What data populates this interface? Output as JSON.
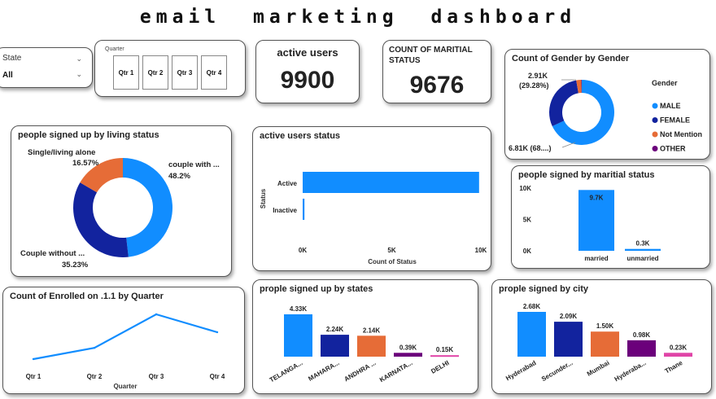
{
  "dashboard_title": "email marketing dashboard",
  "state_slicer": {
    "label": "State",
    "value": "All"
  },
  "quarter_slicer": {
    "label": "Quarter",
    "options": [
      "Qtr 1",
      "Qtr 2",
      "Qtr 3",
      "Qtr 4"
    ]
  },
  "kpi_active": {
    "label": "active users",
    "value": "9900"
  },
  "kpi_marital": {
    "label": "COUNT OF MARITIAL STATUS",
    "value": "9676"
  },
  "colors": {
    "blue": "#118DFF",
    "navy": "#12239E",
    "orange": "#E66C37",
    "purple": "#6B007B",
    "pink": "#E044A7"
  },
  "chart_data": [
    {
      "id": "gender",
      "type": "pie",
      "title": "Count of Gender by Gender",
      "legend_title": "Gender",
      "legend_position": "right",
      "labels": [
        "MALE",
        "FEMALE",
        "Not Mention",
        "OTHER"
      ],
      "values": [
        68.0,
        29.28,
        2.5,
        0.22
      ],
      "colors": [
        "#118DFF",
        "#12239E",
        "#E66C37",
        "#6B007B"
      ],
      "data_labels": [
        {
          "line1": "2.91K",
          "line2": "(29.28%)"
        },
        {
          "line1": "6.81K (68....)",
          "line2": ""
        }
      ]
    },
    {
      "id": "living",
      "type": "pie",
      "title": "people signed up by living status",
      "labels": [
        "couple with ...",
        "Couple without ...",
        "Single/living alone"
      ],
      "values": [
        48.2,
        35.23,
        16.57
      ],
      "display_values": [
        "48.2%",
        "35.23%",
        "16.57%"
      ],
      "colors": [
        "#118DFF",
        "#12239E",
        "#E66C37"
      ]
    },
    {
      "id": "active_status",
      "type": "bar",
      "orientation": "horizontal",
      "title": "active users status",
      "categories": [
        "Active",
        "Inactive"
      ],
      "values": [
        9900,
        100
      ],
      "xlabel": "Count of Status",
      "ylabel": "Status",
      "xticks": [
        "0K",
        "5K",
        "10K"
      ],
      "xlim": [
        0,
        10000
      ]
    },
    {
      "id": "marital",
      "type": "bar",
      "title": "people signed by maritial status",
      "categories": [
        "married",
        "unmarried"
      ],
      "values": [
        9.7,
        0.3
      ],
      "display_values": [
        "9.7K",
        "0.3K"
      ],
      "yticks": [
        "0K",
        "5K",
        "10K"
      ],
      "ylim": [
        0,
        10
      ]
    },
    {
      "id": "enrolled",
      "type": "line",
      "title": "Count of Enrolled on .1.1 by Quarter",
      "categories": [
        "Qtr 1",
        "Qtr 2",
        "Qtr 3",
        "Qtr 4"
      ],
      "values": [
        0.0,
        0.25,
        1.0,
        0.6
      ],
      "xlabel": "Quarter"
    },
    {
      "id": "states",
      "type": "bar",
      "title": "prople signed up by states",
      "categories": [
        "TELANGA...",
        "MAHARA...",
        "ANDHRA ...",
        "KARNATA...",
        "DELHI"
      ],
      "values": [
        4.33,
        2.24,
        2.14,
        0.39,
        0.15
      ],
      "display_values": [
        "4.33K",
        "2.24K",
        "2.14K",
        "0.39K",
        "0.15K"
      ],
      "colors": [
        "#118DFF",
        "#12239E",
        "#E66C37",
        "#6B007B",
        "#E044A7"
      ]
    },
    {
      "id": "city",
      "type": "bar",
      "title": "prople signed by city",
      "categories": [
        "Hyderabad",
        "Secunder...",
        "Mumbai",
        "Hyderaba...",
        "Thane"
      ],
      "values": [
        2.68,
        2.09,
        1.5,
        0.98,
        0.23
      ],
      "display_values": [
        "2.68K",
        "2.09K",
        "1.50K",
        "0.98K",
        "0.23K"
      ],
      "colors": [
        "#118DFF",
        "#12239E",
        "#E66C37",
        "#6B007B",
        "#E044A7"
      ]
    }
  ]
}
